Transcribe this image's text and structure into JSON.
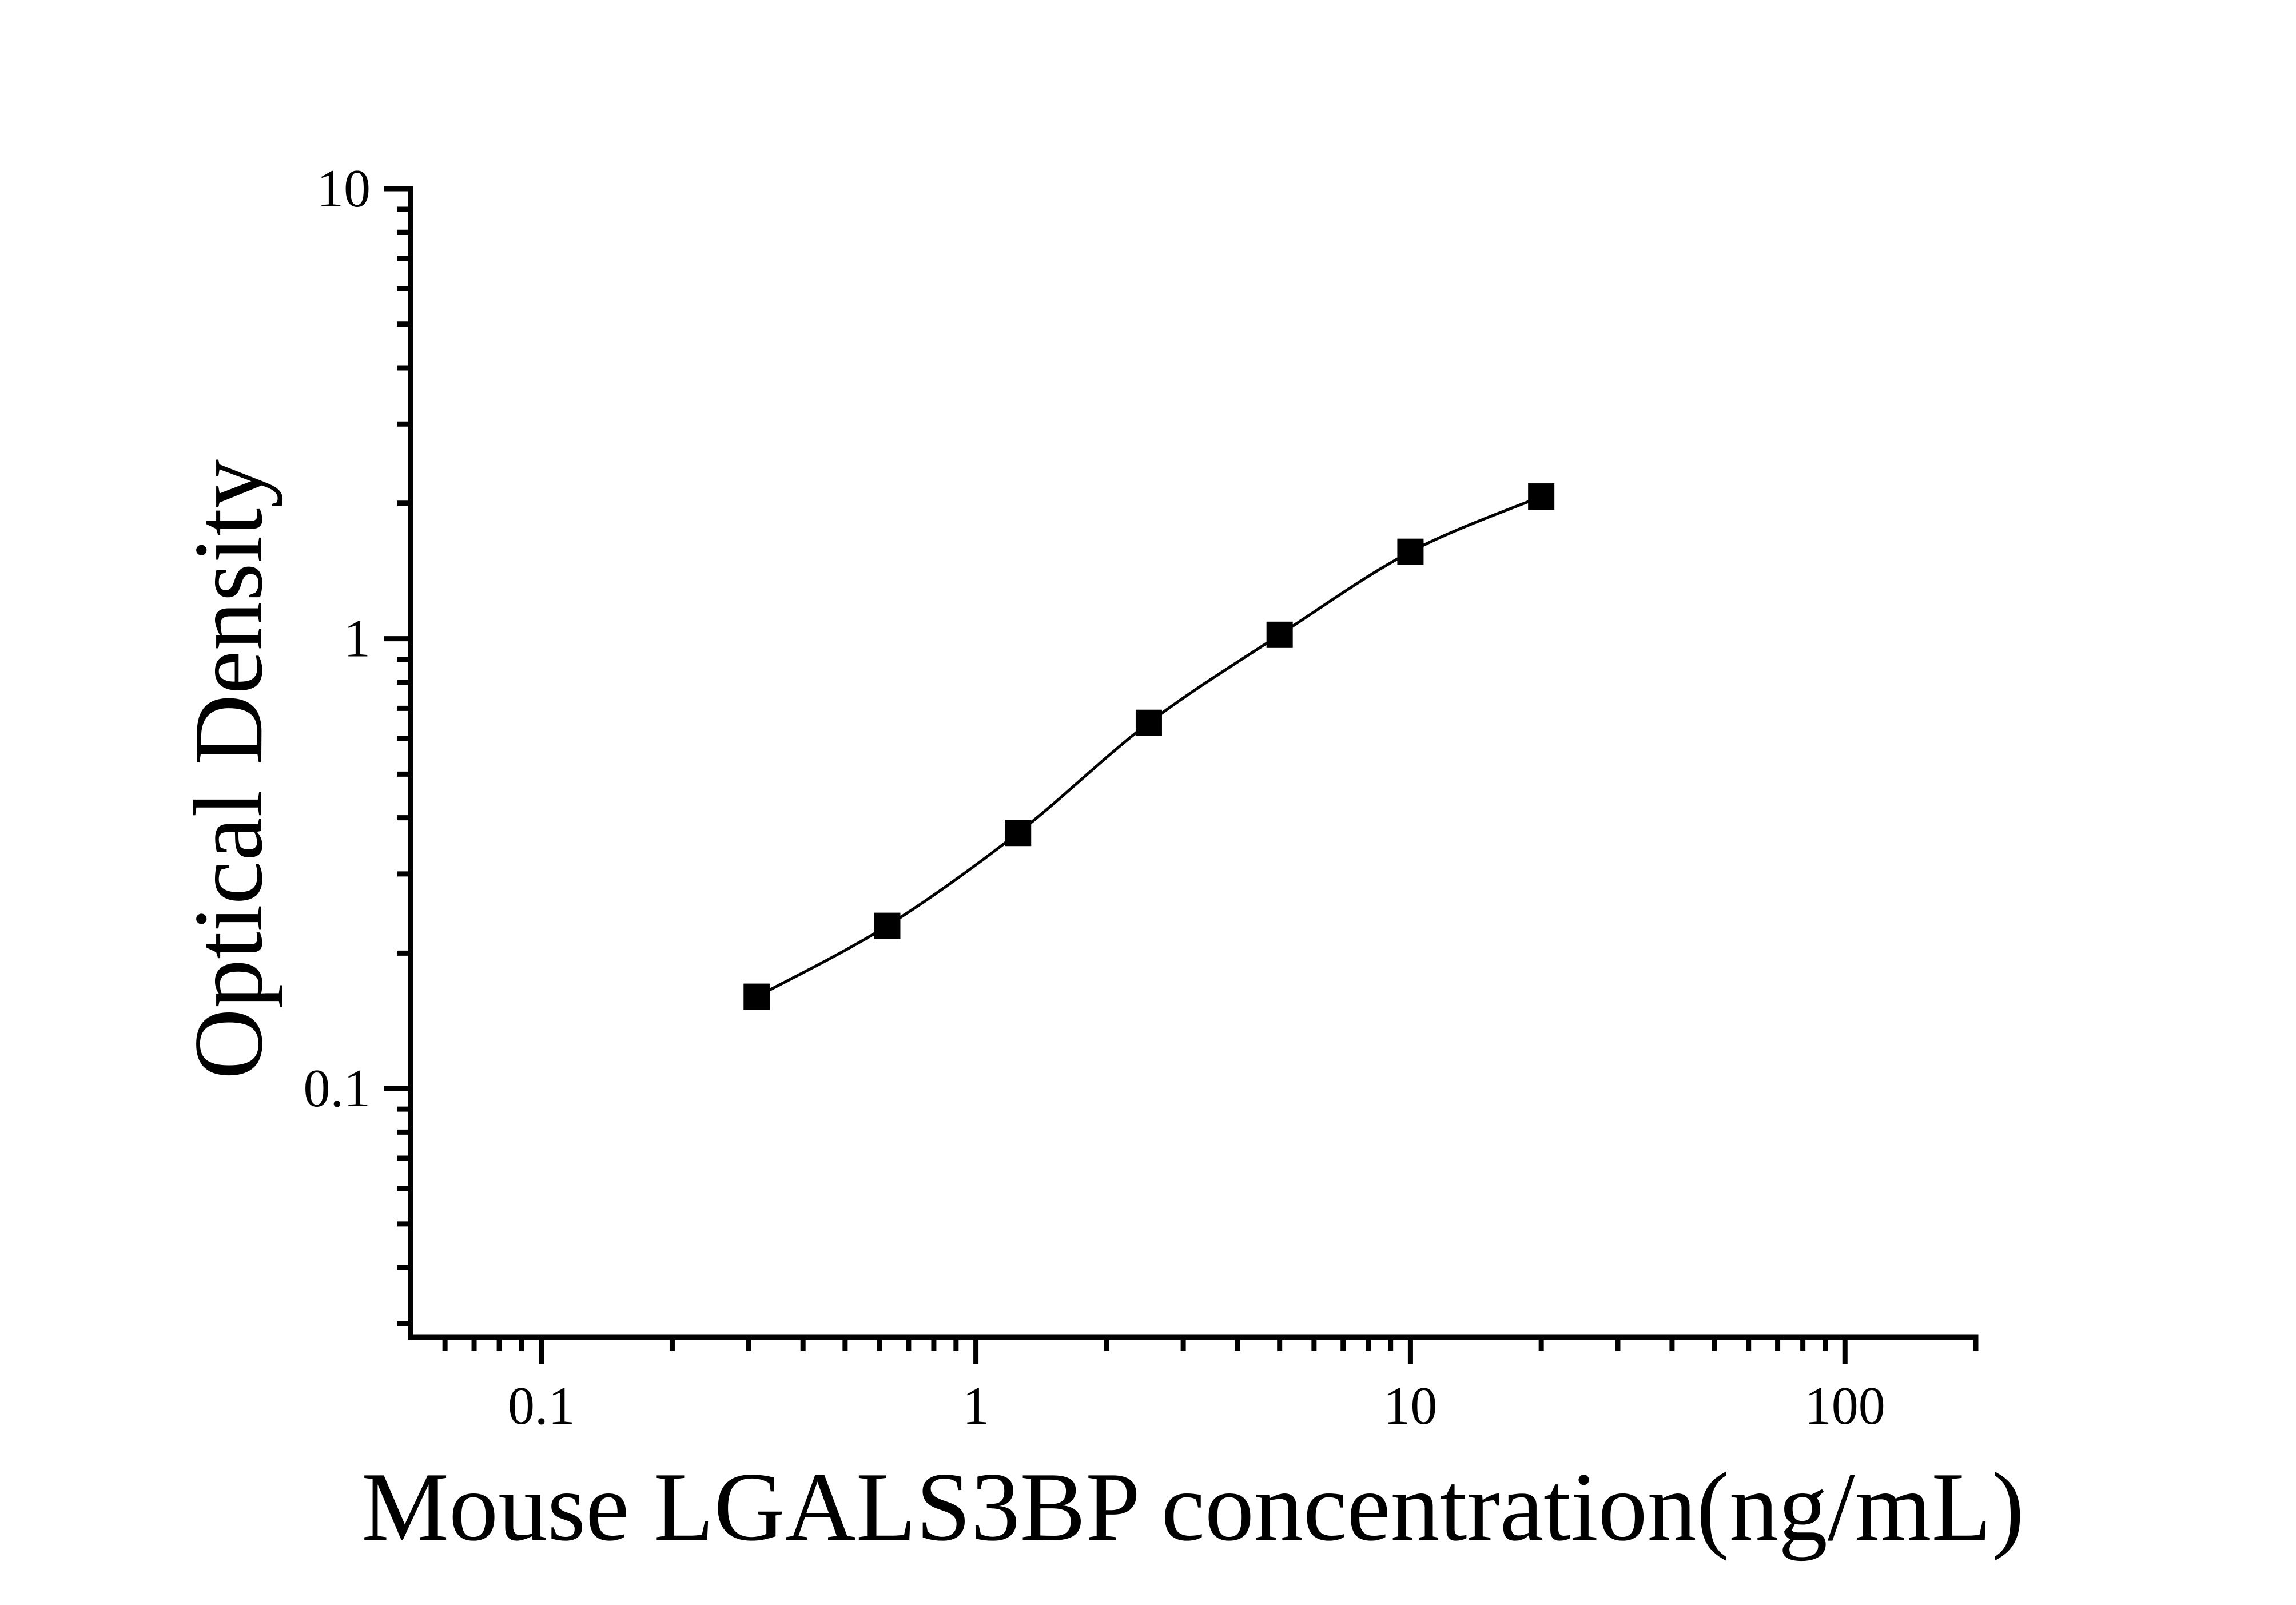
{
  "figure": {
    "background_color": "#ffffff",
    "foreground_color": "#000000",
    "kind": "ELISA standard curve"
  },
  "chart_data": {
    "type": "line",
    "title": "",
    "xlabel": "Mouse LGALS3BP concentration(ng/mL)",
    "ylabel": "Optical Density",
    "x_scale": "log",
    "y_scale": "log",
    "xlim": [
      0.05,
      200
    ],
    "ylim": [
      0.028,
      10
    ],
    "x_major_ticks": [
      0.1,
      1,
      10,
      100
    ],
    "x_tick_labels": [
      "0.1",
      "1",
      "10",
      "100"
    ],
    "y_major_ticks": [
      0.1,
      1,
      10
    ],
    "y_tick_labels": [
      "0.1",
      "1",
      "10"
    ],
    "grid": false,
    "legend": null,
    "line_color": "#000000",
    "marker": "filled-square",
    "marker_color": "#000000",
    "series": [
      {
        "name": "standard-curve",
        "x": [
          0.313,
          0.625,
          1.25,
          2.5,
          5,
          10,
          20
        ],
        "y": [
          0.16,
          0.23,
          0.37,
          0.65,
          1.02,
          1.56,
          2.07
        ]
      }
    ]
  }
}
